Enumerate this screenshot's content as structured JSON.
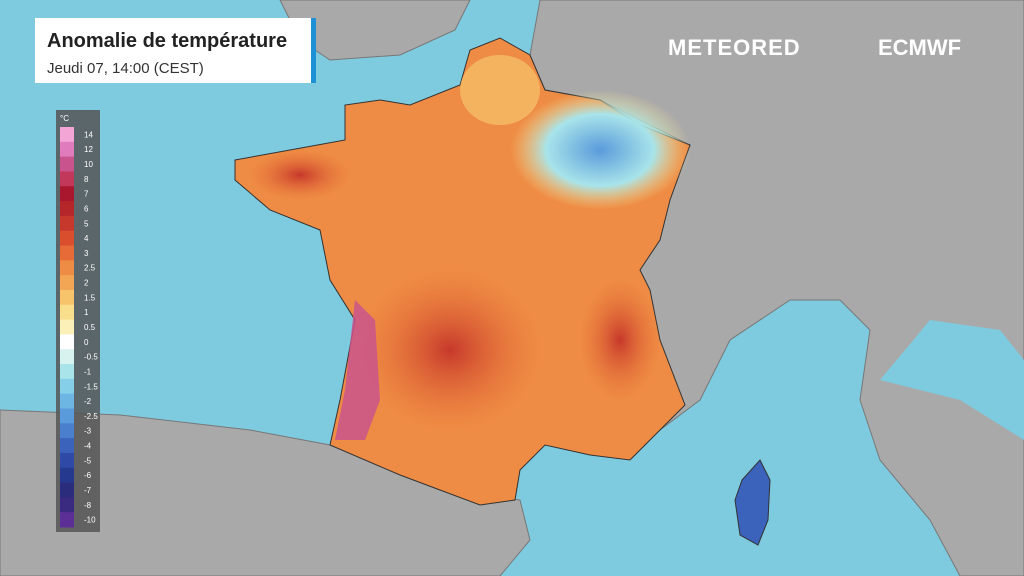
{
  "header": {
    "title": "Anomalie de température",
    "subtitle": "Jeudi 07, 14:00 (CEST)"
  },
  "brand": {
    "left": "METEORED",
    "right": "ECMWF"
  },
  "legend": {
    "unit": "°C",
    "stops": [
      {
        "value": 14,
        "color": "#f3a6d6"
      },
      {
        "value": 12,
        "color": "#e07bbd"
      },
      {
        "value": 10,
        "color": "#c9538c"
      },
      {
        "value": 8,
        "color": "#c2385a"
      },
      {
        "value": 7,
        "color": "#a8172e"
      },
      {
        "value": 6,
        "color": "#b5262a"
      },
      {
        "value": 5,
        "color": "#c6382b"
      },
      {
        "value": 4,
        "color": "#d94f2e"
      },
      {
        "value": 3,
        "color": "#e66b36"
      },
      {
        "value": 2.5,
        "color": "#ee8b44"
      },
      {
        "value": 2,
        "color": "#f3a654"
      },
      {
        "value": 1.5,
        "color": "#f7c46b"
      },
      {
        "value": 1,
        "color": "#f9de8c"
      },
      {
        "value": 0.5,
        "color": "#fbf0b8"
      },
      {
        "value": 0,
        "color": "#ffffff"
      },
      {
        "value": -0.5,
        "color": "#d8f2f0"
      },
      {
        "value": -1,
        "color": "#a8e4ea"
      },
      {
        "value": -1.5,
        "color": "#86cfe8"
      },
      {
        "value": -2,
        "color": "#6db6e3"
      },
      {
        "value": -2.5,
        "color": "#5a9bdb"
      },
      {
        "value": -3,
        "color": "#4a7fce"
      },
      {
        "value": -4,
        "color": "#3b63bb"
      },
      {
        "value": -5,
        "color": "#2e4aa6"
      },
      {
        "value": -6,
        "color": "#253a8e"
      },
      {
        "value": -7,
        "color": "#2b2d7c"
      },
      {
        "value": -8,
        "color": "#3a2a80"
      },
      {
        "value": -10,
        "color": "#5b2f96"
      }
    ]
  }
}
